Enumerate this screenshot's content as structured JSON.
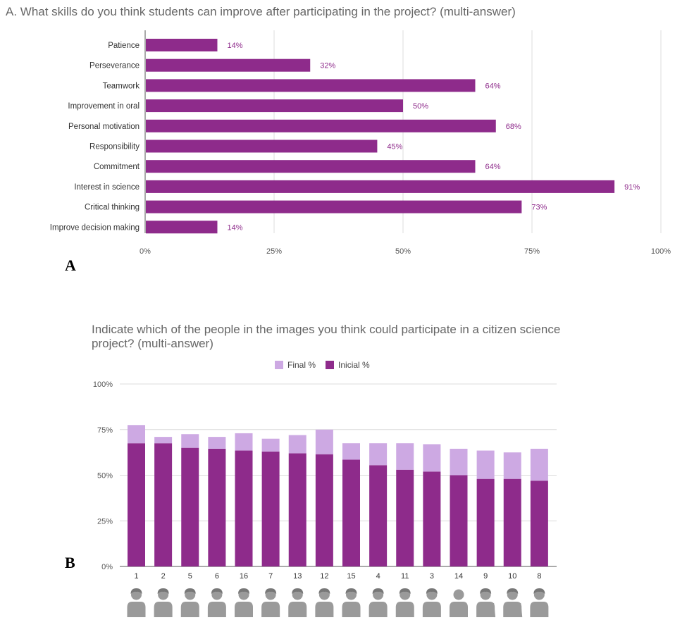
{
  "panel_labels": {
    "a": "A",
    "b": "B"
  },
  "chart_data": [
    {
      "type": "bar",
      "orientation": "horizontal",
      "title": "A. What skills do you think students can improve after participating in the project? (multi-answer)",
      "categories": [
        "Patience",
        "Perseverance",
        "Teamwork",
        "Improvement in oral",
        "Personal motivation",
        "Responsibility",
        "Commitment",
        "Interest in science",
        "Critical thinking",
        "Improve decision making"
      ],
      "values": [
        14,
        32,
        64,
        50,
        68,
        45,
        64,
        91,
        73,
        14
      ],
      "value_labels": [
        "14%",
        "32%",
        "64%",
        "50%",
        "68%",
        "45%",
        "64%",
        "91%",
        "73%",
        "14%"
      ],
      "xlim": [
        0,
        100
      ],
      "xticks": [
        "0%",
        "25%",
        "50%",
        "75%",
        "100%"
      ],
      "grid": true,
      "colors": {
        "bar": "#8e2b8b",
        "label": "#8e2b8b"
      }
    },
    {
      "type": "bar",
      "stacked": true,
      "title": "Indicate which of the people in the images you think could participate in a citizen science project? (multi-answer)",
      "categories": [
        "1",
        "2",
        "5",
        "6",
        "16",
        "7",
        "13",
        "12",
        "15",
        "4",
        "11",
        "3",
        "14",
        "9",
        "10",
        "8"
      ],
      "series": [
        {
          "name": "Inicial %",
          "values": [
            67.5,
            67.5,
            65,
            64.5,
            63.5,
            63,
            62,
            61.5,
            58.5,
            55.5,
            53,
            52,
            50,
            48,
            48,
            47
          ]
        },
        {
          "name": "Final %",
          "values": [
            10,
            3.5,
            7.5,
            6.5,
            9.5,
            7,
            10,
            13.5,
            9,
            12,
            14.5,
            15,
            14.5,
            15.5,
            14.5,
            17.5
          ]
        }
      ],
      "legend_order": [
        "Final %",
        "Inicial %"
      ],
      "ylim": [
        0,
        100
      ],
      "yticks": [
        "0%",
        "25%",
        "50%",
        "75%",
        "100%"
      ],
      "legend_position": "top",
      "grid": true,
      "colors": {
        "Inicial %": "#8e2b8b",
        "Final %": "#cda9e3"
      },
      "icons": [
        "woman-icon",
        "businessman-icon",
        "woman-glasses-icon",
        "elderly-man-icon",
        "man-icon",
        "doctor-icon",
        "bearded-man-icon",
        "hijab-woman-icon",
        "child-curly-icon",
        "girl-pigtails-icon",
        "long-hair-woman-icon",
        "boy-icon",
        "bald-man-icon",
        "elderly-cane-icon",
        "elderly-woman-cane-icon",
        "headset-person-icon"
      ]
    }
  ]
}
